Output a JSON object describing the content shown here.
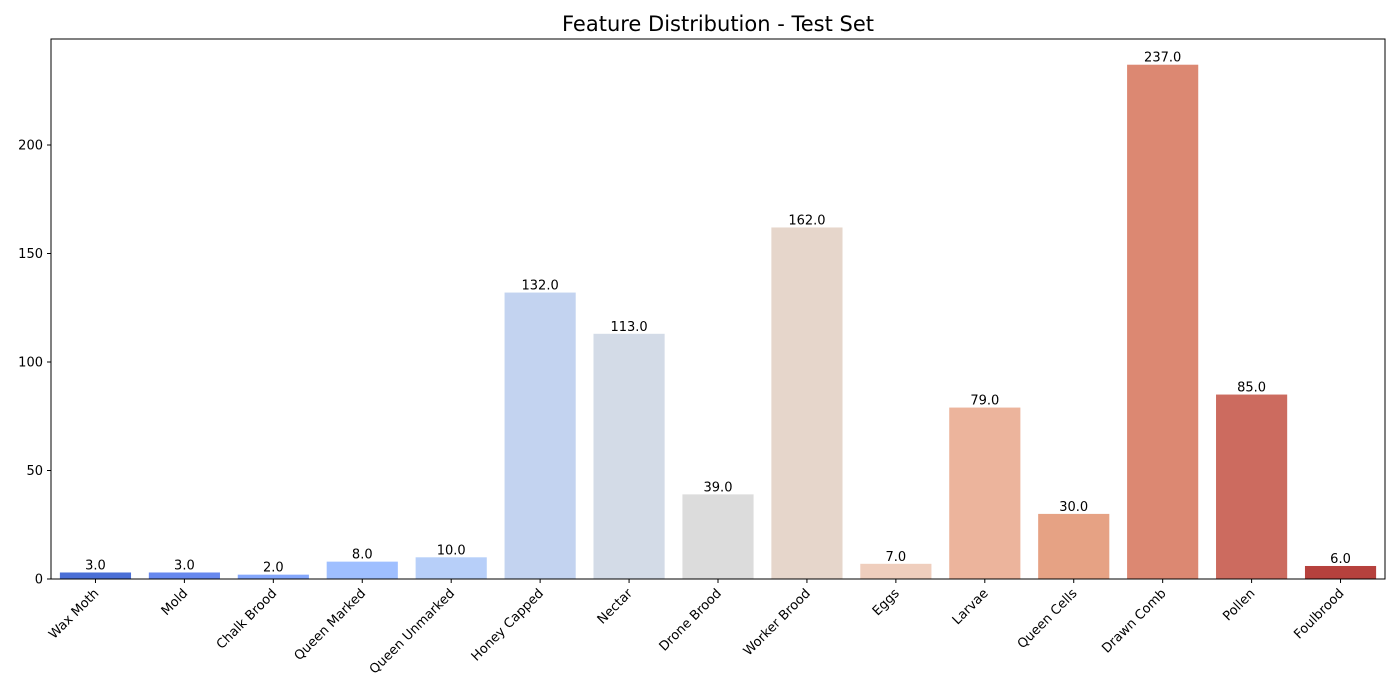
{
  "chart_data": {
    "type": "bar",
    "title": "Feature Distribution - Test Set",
    "xlabel": "",
    "ylabel": "",
    "categories": [
      "Wax Moth",
      "Mold",
      "Chalk Brood",
      "Queen Marked",
      "Queen Unmarked",
      "Honey Capped",
      "Nectar",
      "Drone Brood",
      "Worker Brood",
      "Eggs",
      "Larvae",
      "Queen Cells",
      "Drawn Comb",
      "Pollen",
      "Foulbrood"
    ],
    "values": [
      3,
      3,
      2,
      8,
      10,
      132,
      113,
      39,
      162,
      7,
      79,
      30,
      237,
      85,
      6
    ],
    "data_labels": [
      "3.0",
      "3.0",
      "2.0",
      "8.0",
      "10.0",
      "132.0",
      "113.0",
      "39.0",
      "162.0",
      "7.0",
      "79.0",
      "30.0",
      "237.0",
      "85.0",
      "6.0"
    ],
    "colors": [
      "#4a6fd6",
      "#6788ee",
      "#84a7fc",
      "#9fbfff",
      "#b7cff9",
      "#c3d3f0",
      "#d3dbe7",
      "#dcdcdc",
      "#e6d6cb",
      "#efcebd",
      "#ecb49c",
      "#e6a284",
      "#dc8872",
      "#cc6b5f",
      "#b6413d"
    ],
    "ylim": [
      0,
      248.85
    ],
    "yticks": [
      0,
      50,
      100,
      150,
      200
    ],
    "grid": false,
    "legend": "none"
  }
}
